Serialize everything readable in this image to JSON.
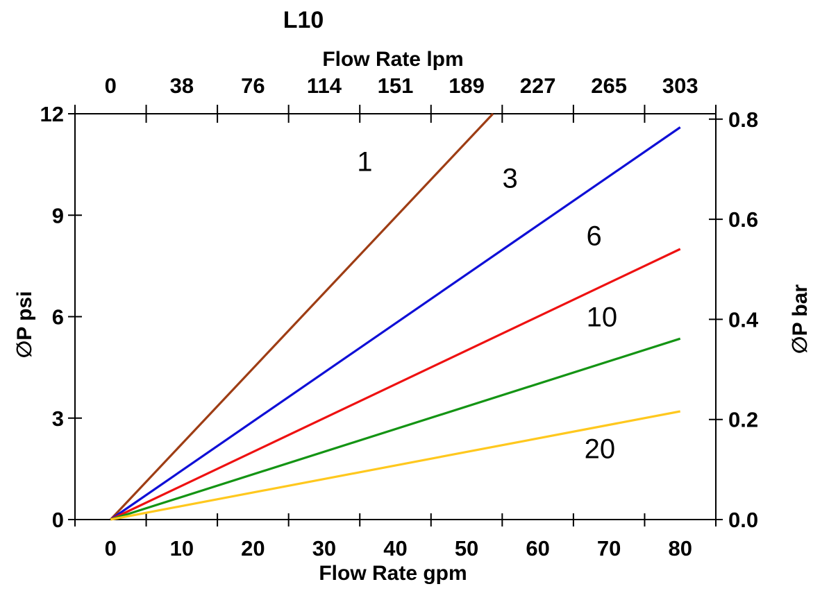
{
  "chart_data": {
    "type": "line",
    "title": "L10",
    "grid": false,
    "background": "#FFFFFF",
    "axis_color": "#000000",
    "xlim": [
      -5,
      85
    ],
    "ylim": [
      0,
      12
    ],
    "x_axis_bottom": {
      "label": "Flow Rate gpm",
      "tick_values": [
        0,
        10,
        20,
        30,
        40,
        50,
        60,
        70,
        80
      ],
      "tick_labels": [
        "0",
        "10",
        "20",
        "30",
        "40",
        "50",
        "60",
        "70",
        "80"
      ],
      "tick_mark_positions_gpm": [
        -5,
        5,
        15,
        25,
        35,
        45,
        55,
        65,
        75,
        85
      ]
    },
    "x_axis_top": {
      "label": "Flow Rate lpm",
      "tick_at_gpm": [
        0,
        10,
        20,
        30,
        40,
        50,
        60,
        70,
        80
      ],
      "tick_labels": [
        "0",
        "38",
        "76",
        "114",
        "151",
        "189",
        "227",
        "265",
        "303"
      ]
    },
    "y_axis_left": {
      "label": "∅P psi",
      "tick_values": [
        0,
        3,
        6,
        9,
        12
      ],
      "tick_labels": [
        "0",
        "3",
        "6",
        "9",
        "12"
      ]
    },
    "y_axis_right": {
      "label": "∅P bar",
      "tick_values": [
        0.0,
        0.2,
        0.4,
        0.6,
        0.8
      ],
      "tick_labels": [
        "0.0",
        "0.2",
        "0.4",
        "0.6",
        "0.8"
      ],
      "psi_per_bar": 14.8
    },
    "series": [
      {
        "name": "1",
        "color": "#9E3D14",
        "points_gpm_psi": [
          [
            0,
            0
          ],
          [
            53.7,
            12
          ]
        ],
        "label_pos_gpm_psi": [
          35.7,
          10.6
        ]
      },
      {
        "name": "3",
        "color": "#0F0FD6",
        "points_gpm_psi": [
          [
            0,
            0
          ],
          [
            80,
            11.6
          ]
        ],
        "label_pos_gpm_psi": [
          56.1,
          10.1
        ]
      },
      {
        "name": "6",
        "color": "#EE1111",
        "points_gpm_psi": [
          [
            0,
            0
          ],
          [
            80,
            8.0
          ]
        ],
        "label_pos_gpm_psi": [
          67.9,
          8.4
        ]
      },
      {
        "name": "10",
        "color": "#149414",
        "points_gpm_psi": [
          [
            0,
            0
          ],
          [
            80,
            5.35
          ]
        ],
        "label_pos_gpm_psi": [
          69.0,
          6.0
        ]
      },
      {
        "name": "20",
        "color": "#FFC81E",
        "points_gpm_psi": [
          [
            0,
            0
          ],
          [
            80,
            3.2
          ]
        ],
        "label_pos_gpm_psi": [
          68.7,
          2.1
        ]
      }
    ]
  }
}
